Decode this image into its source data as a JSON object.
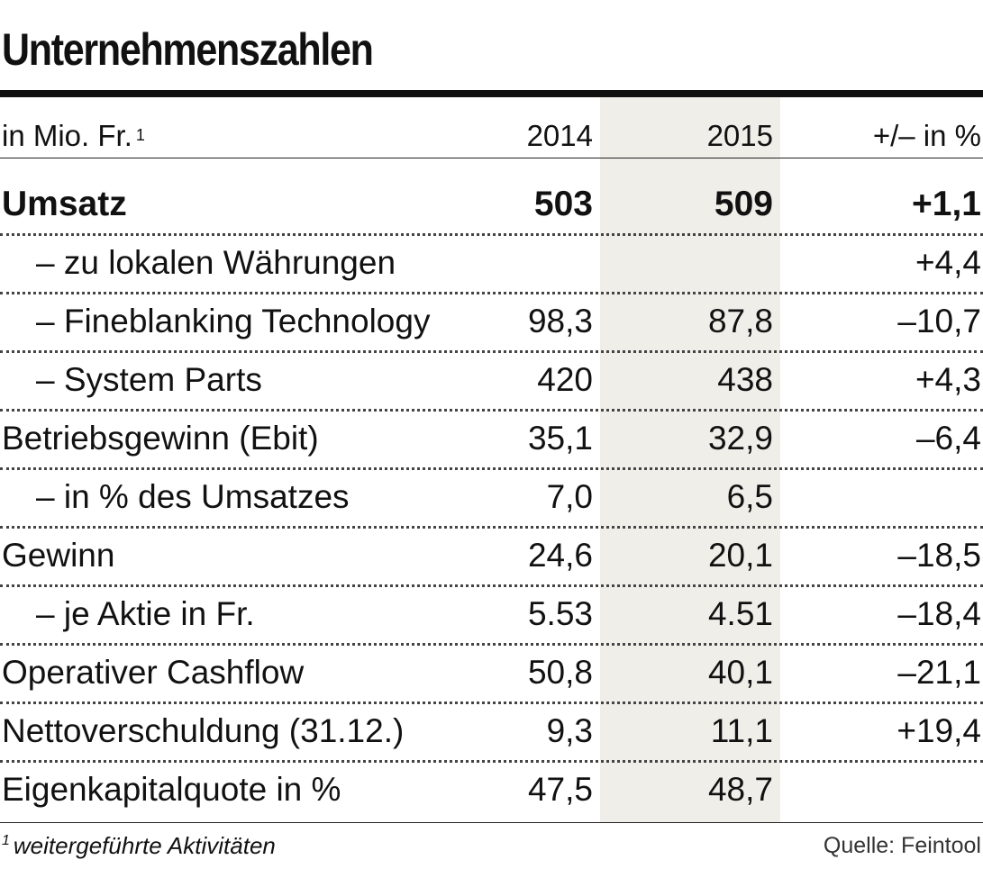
{
  "title": "Unternehmenszahlen",
  "header": {
    "unit": "in Mio. Fr.",
    "unit_footnote": "1",
    "col_2014": "2014",
    "col_2015": "2015",
    "col_change": "+/– in %"
  },
  "rows": [
    {
      "label": "Umsatz",
      "v2014": "503",
      "v2015": "509",
      "change": "+1,1"
    },
    {
      "label": "– zu lokalen Währungen",
      "v2014": "",
      "v2015": "",
      "change": "+4,4"
    },
    {
      "label": "– Fineblanking Technology",
      "v2014": "98,3",
      "v2015": "87,8",
      "change": "–10,7"
    },
    {
      "label": "– System Parts",
      "v2014": "420",
      "v2015": "438",
      "change": "+4,3"
    },
    {
      "label": "Betriebsgewinn (Ebit)",
      "v2014": "35,1",
      "v2015": "32,9",
      "change": "–6,4"
    },
    {
      "label": "– in % des Umsatzes",
      "v2014": "7,0",
      "v2015": "6,5",
      "change": ""
    },
    {
      "label": "Gewinn",
      "v2014": "24,6",
      "v2015": "20,1",
      "change": "–18,5"
    },
    {
      "label": "– je Aktie in Fr.",
      "v2014": "5.53",
      "v2015": "4.51",
      "change": "–18,4"
    },
    {
      "label": "Operativer Cashflow",
      "v2014": "50,8",
      "v2015": "40,1",
      "change": "–21,1"
    },
    {
      "label": "Nettoverschuldung (31.12.)",
      "v2014": "9,3",
      "v2015": "11,1",
      "change": "+19,4"
    },
    {
      "label": "Eigenkapitalquote in %",
      "v2014": "47,5",
      "v2015": "48,7",
      "change": ""
    }
  ],
  "footnote": {
    "marker": "1",
    "text": "weitergeführte Aktivitäten"
  },
  "source": "Quelle: Feintool"
}
